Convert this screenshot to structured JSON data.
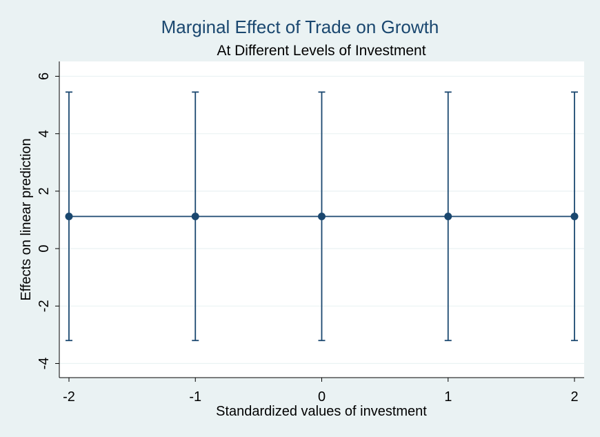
{
  "chart_data": {
    "type": "line",
    "title": "Marginal Effect of Trade on Growth",
    "subtitle": "At Different Levels of Investment",
    "xlabel": "Standardized values of investment",
    "ylabel": "Effects on linear prediction",
    "x_ticks": [
      "-2",
      "-1",
      "0",
      "1",
      "2"
    ],
    "y_ticks": [
      "-4",
      "-2",
      "0",
      "2",
      "4",
      "6"
    ],
    "xlim": [
      -2,
      2
    ],
    "ylim": [
      -4.3,
      6.3
    ],
    "grid": true,
    "series": [
      {
        "x": [
          -2,
          -1,
          0,
          1,
          2
        ],
        "y": [
          1.12,
          1.12,
          1.12,
          1.12,
          1.12
        ],
        "ci_lower": [
          -3.2,
          -3.2,
          -3.2,
          -3.2,
          -3.2
        ],
        "ci_upper": [
          5.45,
          5.45,
          5.45,
          5.45,
          5.45
        ]
      }
    ],
    "colors": {
      "background": "#eaf2f3",
      "plot_area": "#ffffff",
      "series": "#1a476f",
      "grid": "#eaf2f3",
      "axis": "#000000"
    }
  }
}
